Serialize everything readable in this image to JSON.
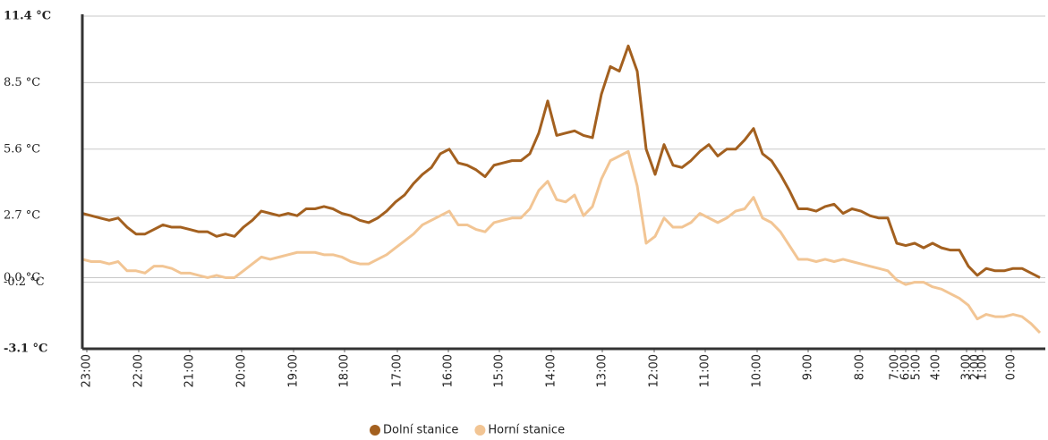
{
  "chart_data": {
    "type": "line",
    "ylim": [
      -3.1,
      11.4
    ],
    "yticks": [
      {
        "value": -3.1,
        "label": "-3.1 °C"
      },
      {
        "value": -0.2,
        "label": "-0.2 °C"
      },
      {
        "value": 0.0,
        "label": "0.0 °C"
      },
      {
        "value": 2.7,
        "label": "2.7 °C"
      },
      {
        "value": 5.6,
        "label": "5.6 °C"
      },
      {
        "value": 8.5,
        "label": "8.5 °C"
      },
      {
        "value": 11.4,
        "label": "11.4 °C"
      }
    ],
    "xlim": [
      0,
      107.6
    ],
    "xticks": [
      {
        "value": 0.5,
        "label": "23:00"
      },
      {
        "value": 6.3,
        "label": "22:00"
      },
      {
        "value": 12.0,
        "label": "21:00"
      },
      {
        "value": 17.8,
        "label": "20:00"
      },
      {
        "value": 23.6,
        "label": "19:00"
      },
      {
        "value": 29.3,
        "label": "18:00"
      },
      {
        "value": 35.2,
        "label": "17:00"
      },
      {
        "value": 40.9,
        "label": "16:00"
      },
      {
        "value": 46.6,
        "label": "15:00"
      },
      {
        "value": 52.4,
        "label": "14:00"
      },
      {
        "value": 58.1,
        "label": "13:00"
      },
      {
        "value": 63.9,
        "label": "12:00"
      },
      {
        "value": 69.6,
        "label": "11:00"
      },
      {
        "value": 75.4,
        "label": "10:00"
      },
      {
        "value": 81.1,
        "label": "9:00"
      },
      {
        "value": 86.9,
        "label": "8:00"
      },
      {
        "value": 90.8,
        "label": "7:00"
      },
      {
        "value": 92.0,
        "label": "6:00"
      },
      {
        "value": 93.2,
        "label": "5:00"
      },
      {
        "value": 95.4,
        "label": "4:00"
      },
      {
        "value": 98.8,
        "label": "3:00"
      },
      {
        "value": 99.8,
        "label": "2:00"
      },
      {
        "value": 100.6,
        "label": "1:00"
      },
      {
        "value": 103.8,
        "label": "0:00"
      }
    ],
    "grid": true,
    "legend": "bottom",
    "x": [
      0,
      1,
      2,
      3,
      4,
      5,
      6,
      7,
      8,
      9,
      10,
      11,
      12,
      13,
      14,
      15,
      16,
      17,
      18,
      19,
      20,
      21,
      22,
      23,
      24,
      25,
      26,
      27,
      28,
      29,
      30,
      31,
      32,
      33,
      34,
      35,
      36,
      37,
      38,
      39,
      40,
      41,
      42,
      43,
      44,
      45,
      46,
      47,
      48,
      49,
      50,
      51,
      52,
      53,
      54,
      55,
      56,
      57,
      58,
      59,
      60,
      61,
      62,
      63,
      64,
      65,
      66,
      67,
      68,
      69,
      70,
      71,
      72,
      73,
      74,
      75,
      76,
      77,
      78,
      79,
      80,
      81,
      82,
      83,
      84,
      85,
      86,
      87,
      88,
      89,
      90,
      91,
      92,
      93,
      94,
      95,
      96,
      97,
      98,
      99,
      100,
      101,
      102,
      103,
      104,
      105,
      106,
      107
    ],
    "series": [
      {
        "name": "Dolní stanice",
        "color": "#a3601f",
        "values": [
          2.8,
          2.7,
          2.6,
          2.5,
          2.6,
          2.2,
          1.9,
          1.9,
          2.1,
          2.3,
          2.2,
          2.2,
          2.1,
          2.0,
          2.0,
          1.8,
          1.9,
          1.8,
          2.2,
          2.5,
          2.9,
          2.8,
          2.7,
          2.8,
          2.7,
          3.0,
          3.0,
          3.1,
          3.0,
          2.8,
          2.7,
          2.5,
          2.4,
          2.6,
          2.9,
          3.3,
          3.6,
          4.1,
          4.5,
          4.8,
          5.4,
          5.6,
          5.0,
          4.9,
          4.7,
          4.4,
          4.9,
          5.0,
          5.1,
          5.1,
          5.4,
          6.3,
          7.7,
          6.2,
          6.3,
          6.4,
          6.2,
          6.1,
          8.0,
          9.2,
          9.0,
          10.1,
          9.0,
          5.6,
          4.5,
          5.8,
          4.9,
          4.8,
          5.1,
          5.5,
          5.8,
          5.3,
          5.6,
          5.6,
          6.0,
          6.5,
          5.4,
          5.1,
          4.5,
          3.8,
          3.0,
          3.0,
          2.9,
          3.1,
          3.2,
          2.8,
          3.0,
          2.9,
          2.7,
          2.6,
          2.6,
          1.5,
          1.4,
          1.5,
          1.3,
          1.5,
          1.3,
          1.2,
          1.2,
          0.5,
          0.1,
          0.4,
          0.3,
          0.3,
          0.4,
          0.4,
          0.2,
          0.0
        ]
      },
      {
        "name": "Horní stanice",
        "color": "#f2c594",
        "values": [
          0.8,
          0.7,
          0.7,
          0.6,
          0.7,
          0.3,
          0.3,
          0.2,
          0.5,
          0.5,
          0.4,
          0.2,
          0.2,
          0.1,
          0.0,
          0.1,
          0.0,
          0.0,
          0.3,
          0.6,
          0.9,
          0.8,
          0.9,
          1.0,
          1.1,
          1.1,
          1.1,
          1.0,
          1.0,
          0.9,
          0.7,
          0.6,
          0.6,
          0.8,
          1.0,
          1.3,
          1.6,
          1.9,
          2.3,
          2.5,
          2.7,
          2.9,
          2.3,
          2.3,
          2.1,
          2.0,
          2.4,
          2.5,
          2.6,
          2.6,
          3.0,
          3.8,
          4.2,
          3.4,
          3.3,
          3.6,
          2.7,
          3.1,
          4.3,
          5.1,
          5.3,
          5.5,
          4.0,
          1.5,
          1.8,
          2.6,
          2.2,
          2.2,
          2.4,
          2.8,
          2.6,
          2.4,
          2.6,
          2.9,
          3.0,
          3.5,
          2.6,
          2.4,
          2.0,
          1.4,
          0.8,
          0.8,
          0.7,
          0.8,
          0.7,
          0.8,
          0.7,
          0.6,
          0.5,
          0.4,
          0.3,
          -0.1,
          -0.3,
          -0.2,
          -0.2,
          -0.4,
          -0.5,
          -0.7,
          -0.9,
          -1.2,
          -1.8,
          -1.6,
          -1.7,
          -1.7,
          -1.6,
          -1.7,
          -2.0,
          -2.4
        ]
      }
    ]
  }
}
